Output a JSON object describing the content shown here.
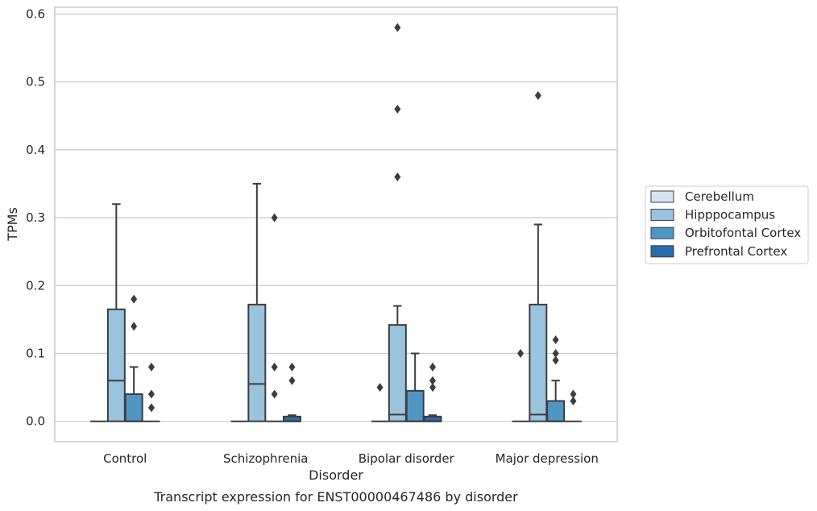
{
  "chart_data": {
    "type": "box",
    "title": "",
    "caption": "Transcript expression for ENST00000467486 by disorder",
    "xlabel": "Disorder",
    "ylabel": "TPMs",
    "ylim": [
      -0.03,
      0.61
    ],
    "yticks": [
      "0.0",
      "0.1",
      "0.2",
      "0.3",
      "0.4",
      "0.5",
      "0.6"
    ],
    "ytick_values": [
      0.0,
      0.1,
      0.2,
      0.3,
      0.4,
      0.5,
      0.6
    ],
    "grid": "horizontal",
    "legend_position": "right",
    "categories": [
      "Control",
      "Schizophrenia",
      "Bipolar disorder",
      "Major depression"
    ],
    "series": [
      {
        "name": "Cerebellum",
        "color": "#d6e4f1",
        "boxes": [
          {
            "q1": 0,
            "median": 0,
            "q3": 0,
            "whisker_low": 0,
            "whisker_high": 0,
            "outliers": []
          },
          {
            "q1": 0,
            "median": 0,
            "q3": 0,
            "whisker_low": 0,
            "whisker_high": 0,
            "outliers": []
          },
          {
            "q1": 0,
            "median": 0,
            "q3": 0,
            "whisker_low": 0,
            "whisker_high": 0,
            "outliers": [
              0.05
            ]
          },
          {
            "q1": 0,
            "median": 0,
            "q3": 0,
            "whisker_low": 0,
            "whisker_high": 0,
            "outliers": [
              0.1
            ]
          }
        ]
      },
      {
        "name": "Hipppocampus",
        "color": "#9ac3de",
        "boxes": [
          {
            "q1": 0,
            "median": 0.06,
            "q3": 0.165,
            "whisker_low": 0,
            "whisker_high": 0.32,
            "outliers": []
          },
          {
            "q1": 0,
            "median": 0.055,
            "q3": 0.172,
            "whisker_low": 0,
            "whisker_high": 0.35,
            "outliers": []
          },
          {
            "q1": 0,
            "median": 0.01,
            "q3": 0.142,
            "whisker_low": 0,
            "whisker_high": 0.17,
            "outliers": [
              0.58,
              0.46,
              0.36
            ]
          },
          {
            "q1": 0,
            "median": 0.01,
            "q3": 0.172,
            "whisker_low": 0,
            "whisker_high": 0.29,
            "outliers": [
              0.48
            ]
          }
        ]
      },
      {
        "name": "Orbitofontal Cortex",
        "color": "#5096c5",
        "boxes": [
          {
            "q1": 0,
            "median": 0,
            "q3": 0.04,
            "whisker_low": 0,
            "whisker_high": 0.08,
            "outliers": [
              0.18,
              0.14
            ]
          },
          {
            "q1": 0,
            "median": 0,
            "q3": 0,
            "whisker_low": 0,
            "whisker_high": 0,
            "outliers": [
              0.3,
              0.08,
              0.04
            ]
          },
          {
            "q1": 0,
            "median": 0,
            "q3": 0.045,
            "whisker_low": 0,
            "whisker_high": 0.1,
            "outliers": []
          },
          {
            "q1": 0,
            "median": 0,
            "q3": 0.03,
            "whisker_low": 0,
            "whisker_high": 0.06,
            "outliers": [
              0.12,
              0.1,
              0.09
            ]
          }
        ]
      },
      {
        "name": "Prefrontal Cortex",
        "color": "#2a6ba9",
        "boxes": [
          {
            "q1": 0,
            "median": 0,
            "q3": 0,
            "whisker_low": 0,
            "whisker_high": 0,
            "outliers": [
              0.08,
              0.04,
              0.02
            ]
          },
          {
            "q1": 0,
            "median": 0,
            "q3": 0.007,
            "whisker_low": 0,
            "whisker_high": 0.009,
            "outliers": [
              0.08,
              0.06
            ]
          },
          {
            "q1": 0,
            "median": 0,
            "q3": 0.007,
            "whisker_low": 0,
            "whisker_high": 0.009,
            "outliers": [
              0.08,
              0.06,
              0.05
            ]
          },
          {
            "q1": 0,
            "median": 0,
            "q3": 0,
            "whisker_low": 0,
            "whisker_high": 0,
            "outliers": [
              0.04,
              0.03
            ]
          }
        ]
      }
    ]
  }
}
